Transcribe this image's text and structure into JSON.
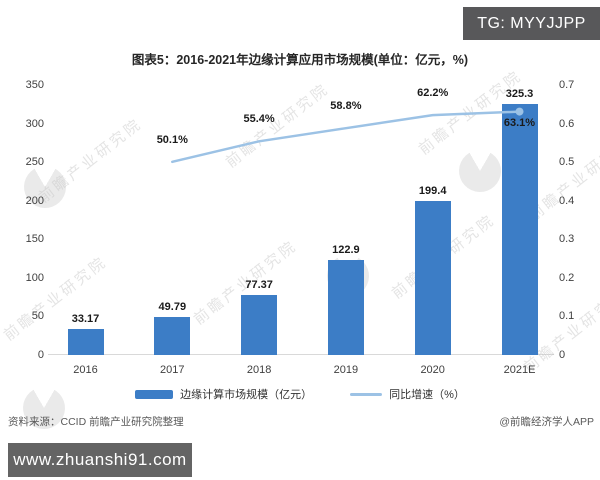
{
  "badge": {
    "text": "TG: MYYJJPP"
  },
  "chart_data": {
    "type": "bar",
    "title": "图表5：2016-2021年边缘计算应用市场规模(单位：亿元，%)",
    "xlabel": "",
    "ylabel": "",
    "categories": [
      "2016",
      "2017",
      "2018",
      "2019",
      "2020",
      "2021E"
    ],
    "series": [
      {
        "name": "边缘计算市场规模（亿元）",
        "type": "bar",
        "axis": "left",
        "color": "#3c7dc6",
        "values": [
          33.17,
          49.79,
          77.37,
          122.9,
          199.4,
          325.3
        ],
        "value_labels": [
          "33.17",
          "49.79",
          "77.37",
          "122.9",
          "199.4",
          "325.3"
        ]
      },
      {
        "name": "同比增速（%）",
        "type": "line",
        "axis": "right",
        "color": "#9cc2e5",
        "values": [
          null,
          50.1,
          55.4,
          58.8,
          62.2,
          63.1
        ],
        "value_labels": [
          "",
          "50.1%",
          "55.4%",
          "58.8%",
          "62.2%",
          "63.1%"
        ]
      }
    ],
    "left_axis": {
      "min": 0,
      "max": 350,
      "ticks": [
        0,
        50,
        100,
        150,
        200,
        250,
        300,
        350
      ]
    },
    "right_axis": {
      "min": 0,
      "max": 0.7,
      "ticks": [
        "0",
        "0.1",
        "0.2",
        "0.3",
        "0.4",
        "0.5",
        "0.6",
        "0.7"
      ]
    },
    "grid": false,
    "legend_position": "bottom"
  },
  "legend": {
    "bar_label": "边缘计算市场规模（亿元）",
    "line_label": "同比增速（%）"
  },
  "watermark": {
    "text": "前瞻产业研究院"
  },
  "footer": {
    "source": "资料来源：CCID 前瞻产业研究院整理",
    "credit": "@前瞻经济学人APP"
  },
  "url_box": {
    "text": "www.zhuanshi91.com"
  },
  "colors": {
    "bar": "#3c7dc6",
    "line": "#9cc2e5",
    "badge_bg": "#58585a",
    "url_box_bg": "#646464",
    "axis_text": "#404040",
    "axis_line": "#d9d9d9"
  }
}
